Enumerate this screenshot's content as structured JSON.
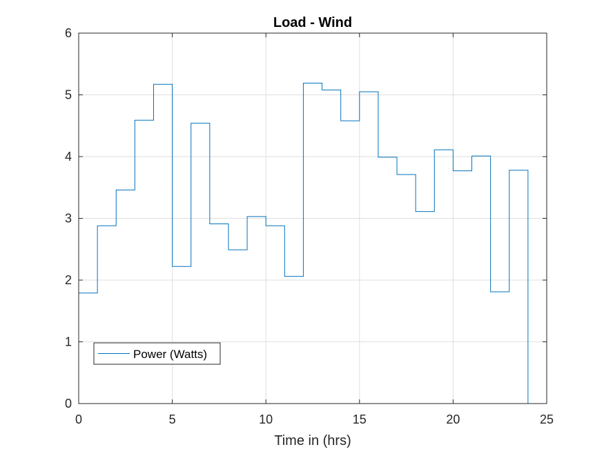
{
  "chart_data": {
    "type": "line",
    "step": true,
    "title": "Load - Wind",
    "xlabel": "Time in (hrs)",
    "ylabel": "",
    "xlim": [
      0,
      25
    ],
    "ylim": [
      0,
      6
    ],
    "xticks": [
      0,
      5,
      10,
      15,
      20,
      25
    ],
    "yticks": [
      0,
      1,
      2,
      3,
      4,
      5,
      6
    ],
    "grid": true,
    "legend": "bottom-left",
    "series": [
      {
        "name": "Power (Watts)",
        "color": "#0072BD",
        "x": [
          0,
          1,
          2,
          3,
          4,
          5,
          6,
          7,
          8,
          9,
          10,
          11,
          12,
          13,
          14,
          15,
          16,
          17,
          18,
          19,
          20,
          21,
          22,
          23,
          24
        ],
        "y": [
          1.79,
          2.88,
          3.46,
          4.59,
          5.17,
          2.22,
          4.54,
          2.91,
          2.49,
          3.03,
          2.88,
          2.06,
          5.19,
          5.08,
          4.58,
          5.05,
          3.99,
          3.71,
          3.11,
          4.11,
          3.77,
          4.01,
          1.81,
          3.78,
          0.0
        ]
      }
    ]
  }
}
